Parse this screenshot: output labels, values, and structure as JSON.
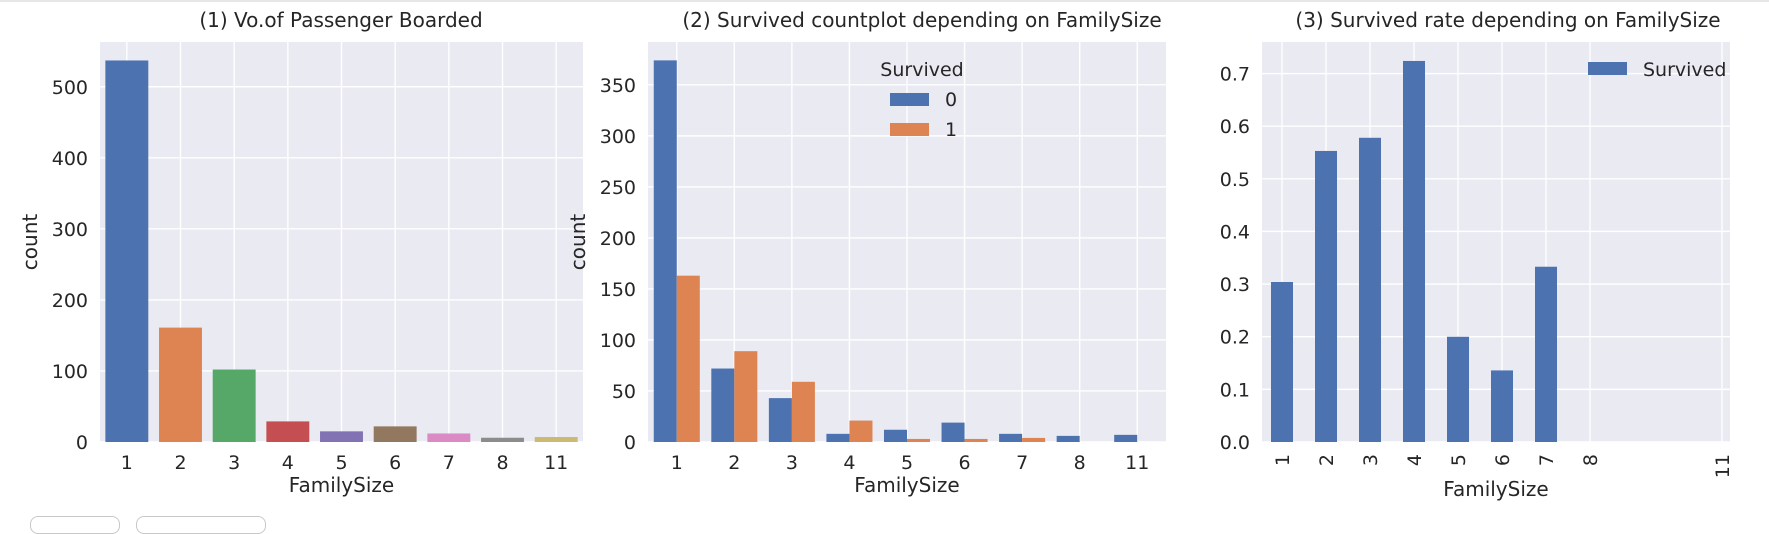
{
  "chart_data": [
    {
      "type": "bar",
      "title": "(1) Vo.of Passenger Boarded",
      "xlabel": "FamilySize",
      "ylabel": "count",
      "categories": [
        "1",
        "2",
        "3",
        "4",
        "5",
        "6",
        "7",
        "8",
        "11"
      ],
      "values": [
        537,
        161,
        102,
        29,
        15,
        22,
        12,
        6,
        7
      ],
      "colors": [
        "#4c72b0",
        "#dd8452",
        "#55a868",
        "#c44e52",
        "#8172b3",
        "#937860",
        "#da8bc3",
        "#8c8c8c",
        "#ccb974"
      ],
      "ylim": [
        0,
        563
      ],
      "yticks": [
        0,
        100,
        200,
        300,
        400,
        500
      ],
      "grid": true
    },
    {
      "type": "bar",
      "title": "(2) Survived countplot depending on FamilySize",
      "xlabel": "FamilySize",
      "ylabel": "count",
      "categories": [
        "1",
        "2",
        "3",
        "4",
        "5",
        "6",
        "7",
        "8",
        "11"
      ],
      "series": [
        {
          "name": "0",
          "values": [
            374,
            72,
            43,
            8,
            12,
            19,
            8,
            6,
            7
          ],
          "color": "#4c72b0"
        },
        {
          "name": "1",
          "values": [
            163,
            89,
            59,
            21,
            3,
            3,
            4,
            0,
            0
          ],
          "color": "#dd8452"
        }
      ],
      "legend_title": "Survived",
      "legend_position": "upper center",
      "ylim": [
        0,
        392
      ],
      "yticks": [
        0,
        50,
        100,
        150,
        200,
        250,
        300,
        350
      ],
      "grid": true
    },
    {
      "type": "bar",
      "title": "(3) Survived rate depending on FamilySize",
      "xlabel": "FamilySize",
      "categories": [
        "1",
        "2",
        "3",
        "4",
        "5",
        "6",
        "7",
        "8",
        "11"
      ],
      "series": [
        {
          "name": "Survived",
          "values": [
            0.304,
            0.553,
            0.578,
            0.724,
            0.2,
            0.136,
            0.333,
            0.0,
            0.0
          ],
          "color": "#4c72b0"
        }
      ],
      "legend_position": "upper right",
      "ylim": [
        0,
        0.76
      ],
      "yticks": [
        "0.0",
        "0.1",
        "0.2",
        "0.3",
        "0.4",
        "0.5",
        "0.6",
        "0.7"
      ],
      "xtick_rotation": 90,
      "grid": true
    }
  ]
}
